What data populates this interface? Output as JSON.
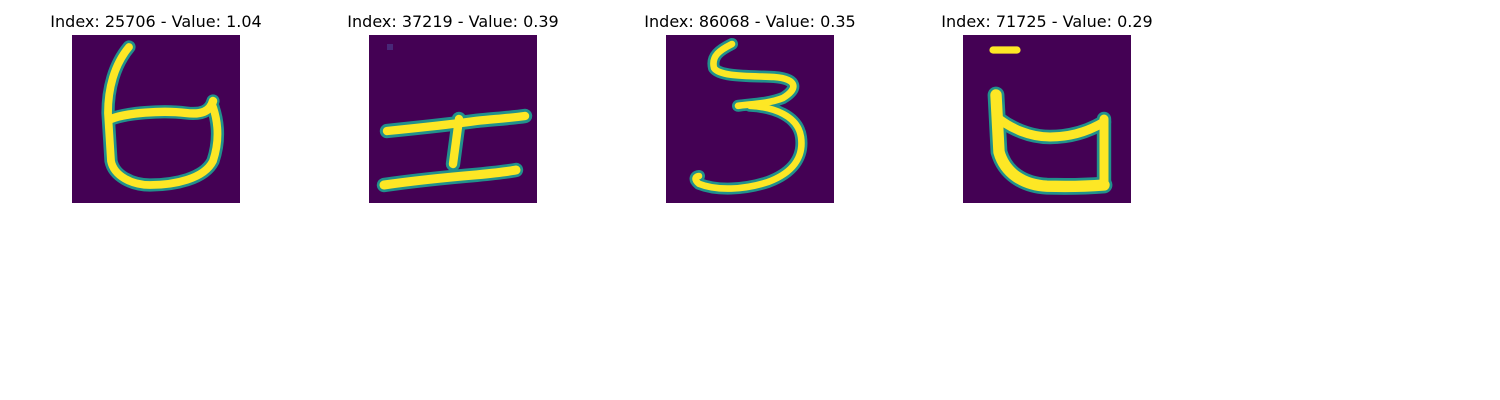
{
  "colors": {
    "background": "#440154",
    "stroke_high": "#fde725",
    "stroke_mid": "#5ec962",
    "stroke_edge": "#21918c",
    "stroke_low": "#3b528b"
  },
  "panels": [
    {
      "title": "Index: 25706 - Value: 1.04",
      "glyph": "6",
      "index": 25706,
      "value": 1.04
    },
    {
      "title": "Index: 37219 - Value: 0.39",
      "glyph": "character resembling 工 with a stroke",
      "index": 37219,
      "value": 0.39
    },
    {
      "title": "Index: 86068 - Value: 0.35",
      "glyph": "3",
      "index": 86068,
      "value": 0.35
    },
    {
      "title": "Index: 71725 - Value: 0.29",
      "glyph": "character resembling a bowl with a dot",
      "index": 71725,
      "value": 0.29
    }
  ]
}
